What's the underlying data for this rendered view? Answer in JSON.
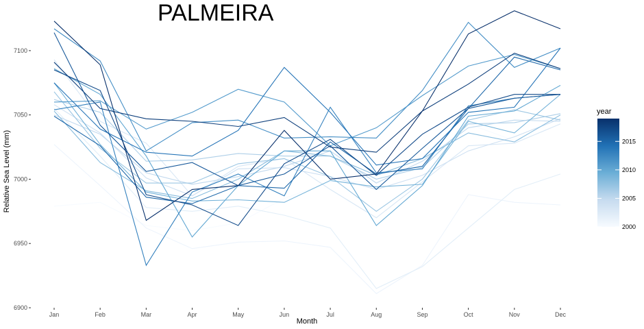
{
  "chart_data": {
    "type": "line",
    "title": "PALMEIRA",
    "xlabel": "Month",
    "ylabel": "Relative Sea Level (mm)",
    "categories": [
      "Jan",
      "Feb",
      "Mar",
      "Apr",
      "May",
      "Jun",
      "Jul",
      "Aug",
      "Sep",
      "Oct",
      "Nov",
      "Dec"
    ],
    "yticks": [
      6900,
      6950,
      7000,
      7050,
      7100
    ],
    "ylim": [
      6900,
      7125
    ],
    "grid": false,
    "legend": {
      "title": "year",
      "placement": "right",
      "type": "colorbar",
      "ticks": [
        2000,
        2005,
        2010,
        2015
      ],
      "range": [
        2000,
        2019
      ],
      "color_low": "#f7fbff",
      "color_high": "#08306b"
    },
    "series": [
      {
        "year": 2000,
        "values": [
          6979,
          6982,
          6964,
          6960,
          6966,
          6985,
          6998,
          6998,
          7011,
          7043,
          7030,
          7048
        ]
      },
      {
        "year": 2001,
        "values": [
          7027,
          6995,
          6962,
          6946,
          6951,
          6952,
          6947,
          6911,
          6933,
          6988,
          6982,
          6980
        ]
      },
      {
        "year": 2002,
        "values": [
          7055,
          7018,
          6978,
          6975,
          6979,
          6972,
          6962,
          6915,
          6932,
          6962,
          6992,
          7004
        ]
      },
      {
        "year": 2003,
        "values": [
          7093,
          7045,
          7028,
          6987,
          7010,
          7016,
          6992,
          6970,
          6998,
          7026,
          7028,
          7043
        ]
      },
      {
        "year": 2004,
        "values": [
          7058,
          7036,
          7001,
          6987,
          7008,
          7009,
          7002,
          6992,
          7003,
          7022,
          7033,
          7047
        ]
      },
      {
        "year": 2005,
        "values": [
          7050,
          7035,
          7005,
          6996,
          7002,
          7010,
          7022,
          6997,
          7014,
          7040,
          7046,
          7045
        ]
      },
      {
        "year": 2006,
        "values": [
          7062,
          7052,
          7014,
          7015,
          7020,
          7018,
          7018,
          7000,
          7009,
          7043,
          7044,
          7051
        ]
      },
      {
        "year": 2007,
        "values": [
          7068,
          7024,
          6997,
          6997,
          7012,
          7016,
          7002,
          6975,
          7000,
          7046,
          7054,
          7046
        ]
      },
      {
        "year": 2008,
        "values": [
          7053,
          7013,
          6991,
          6985,
          7000,
          7022,
          7018,
          7003,
          7016,
          7036,
          7029,
          7050
        ]
      },
      {
        "year": 2009,
        "values": [
          7075,
          7027,
          6990,
          6983,
          6984,
          6982,
          6999,
          6994,
          6996,
          7045,
          7036,
          7066
        ]
      },
      {
        "year": 2010,
        "values": [
          7086,
          7066,
          7018,
          6955,
          6995,
          7022,
          7022,
          6964,
          6995,
          7049,
          7053,
          7073
        ]
      },
      {
        "year": 2011,
        "values": [
          7060,
          7061,
          7039,
          7052,
          7070,
          7060,
          7026,
          7040,
          7065,
          7088,
          7097,
          7086
        ]
      },
      {
        "year": 2012,
        "values": [
          7117,
          7092,
          7022,
          7044,
          7046,
          7032,
          7033,
          7032,
          7069,
          7122,
          7087,
          7102
        ]
      },
      {
        "year": 2013,
        "values": [
          7054,
          7060,
          6933,
          6990,
          7004,
          6987,
          7056,
          7005,
          7008,
          7057,
          7063,
          7066
        ]
      },
      {
        "year": 2014,
        "values": [
          7075,
          7039,
          7021,
          7018,
          7038,
          7087,
          7052,
          7011,
          7016,
          7052,
          7056,
          7102
        ]
      },
      {
        "year": 2015,
        "values": [
          7049,
          7026,
          6986,
          6981,
          6995,
          6993,
          7029,
          7004,
          7010,
          7055,
          7095,
          7085
        ]
      },
      {
        "year": 2016,
        "values": [
          7114,
          7042,
          7006,
          7013,
          6995,
          7004,
          7026,
          6992,
          7024,
          7055,
          7063,
          7066
        ]
      },
      {
        "year": 2017,
        "values": [
          7085,
          7069,
          6988,
          6980,
          6964,
          7012,
          7031,
          7003,
          7035,
          7056,
          7066,
          7066
        ]
      },
      {
        "year": 2018,
        "values": [
          7091,
          7055,
          7047,
          7045,
          7041,
          7048,
          7025,
          7021,
          7053,
          7074,
          7098,
          7086
        ]
      },
      {
        "year": 2019,
        "values": [
          7123,
          7089,
          6968,
          6992,
          6995,
          7038,
          7000,
          7004,
          7053,
          7113,
          7131,
          7117
        ]
      }
    ]
  }
}
